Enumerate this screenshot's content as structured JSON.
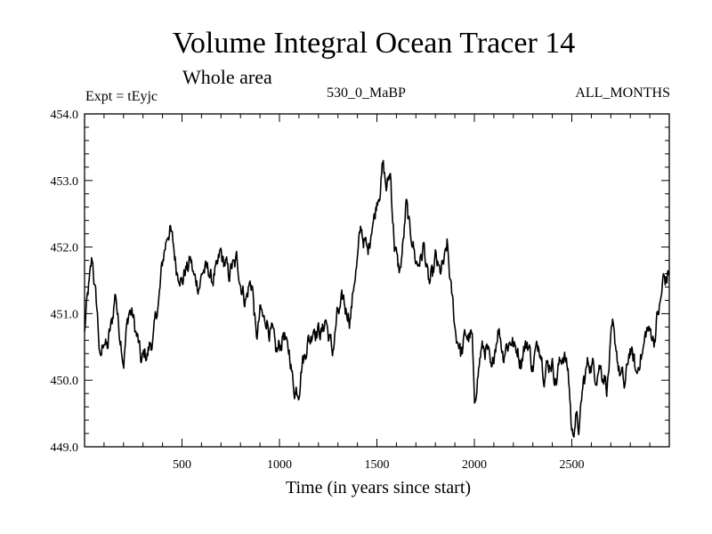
{
  "chart_data": {
    "type": "line",
    "title": "Volume Integral Ocean Tracer 14",
    "subtitle": "Whole area",
    "experiment_label": "Expt = tEyjc",
    "period_label": "530_0_MaBP",
    "months_label": "ALL_MONTHS",
    "xlabel": "Time (in years since start)",
    "ylabel": "",
    "xlim": [
      0,
      3000
    ],
    "ylim": [
      449.0,
      454.0
    ],
    "xticks": [
      500,
      1000,
      1500,
      2000,
      2500
    ],
    "xtick_labels": [
      "500",
      "1000",
      "1500",
      "2000",
      "2500"
    ],
    "yticks": [
      449.0,
      450.0,
      451.0,
      452.0,
      453.0,
      454.0
    ],
    "ytick_labels": [
      "449.0",
      "450.0",
      "451.0",
      "452.0",
      "453.0",
      "454.0"
    ],
    "line_color": "#000000",
    "series": [
      {
        "name": "Volume Integral Ocean Tracer 14",
        "x": [
          0,
          20,
          40,
          60,
          80,
          100,
          120,
          140,
          160,
          180,
          200,
          230,
          260,
          290,
          320,
          350,
          380,
          410,
          440,
          460,
          480,
          500,
          540,
          580,
          620,
          660,
          700,
          740,
          780,
          820,
          860,
          880,
          900,
          930,
          960,
          990,
          1020,
          1050,
          1080,
          1100,
          1120,
          1150,
          1180,
          1210,
          1240,
          1270,
          1300,
          1330,
          1360,
          1390,
          1420,
          1450,
          1480,
          1510,
          1530,
          1550,
          1570,
          1590,
          1620,
          1650,
          1680,
          1710,
          1740,
          1770,
          1800,
          1830,
          1860,
          1880,
          1900,
          1930,
          1960,
          1990,
          2000,
          2030,
          2060,
          2090,
          2120,
          2150,
          2180,
          2210,
          2240,
          2270,
          2300,
          2330,
          2360,
          2390,
          2420,
          2450,
          2480,
          2500,
          2520,
          2540,
          2560,
          2590,
          2620,
          2650,
          2680,
          2710,
          2740,
          2770,
          2800,
          2830,
          2860,
          2890,
          2920,
          2950,
          2970,
          3000
        ],
        "values": [
          450.7,
          451.4,
          451.8,
          451.2,
          450.3,
          450.6,
          450.5,
          450.9,
          451.3,
          450.7,
          450.3,
          451.1,
          450.8,
          450.3,
          450.4,
          450.6,
          451.2,
          452.0,
          452.3,
          451.9,
          451.6,
          451.5,
          451.8,
          451.4,
          451.7,
          451.5,
          451.9,
          451.6,
          451.8,
          451.2,
          451.5,
          450.6,
          451.0,
          450.9,
          450.7,
          450.4,
          450.7,
          450.4,
          449.8,
          449.9,
          450.3,
          450.6,
          450.8,
          450.7,
          450.9,
          450.4,
          451.0,
          451.2,
          450.9,
          451.6,
          452.3,
          451.9,
          452.4,
          452.8,
          453.2,
          452.9,
          453.1,
          452.0,
          451.6,
          452.6,
          452.1,
          451.7,
          452.0,
          451.4,
          451.8,
          451.6,
          452.0,
          451.4,
          450.8,
          450.4,
          450.7,
          450.6,
          449.6,
          450.4,
          450.5,
          450.1,
          450.8,
          450.4,
          450.6,
          450.5,
          450.3,
          450.6,
          450.2,
          450.6,
          450.1,
          450.3,
          450.0,
          450.4,
          450.2,
          449.2,
          449.4,
          449.3,
          450.0,
          450.3,
          450.1,
          450.2,
          449.9,
          450.8,
          450.2,
          449.9,
          450.5,
          450.1,
          450.4,
          450.8,
          450.6,
          451.1,
          451.5,
          451.6
        ]
      }
    ]
  }
}
